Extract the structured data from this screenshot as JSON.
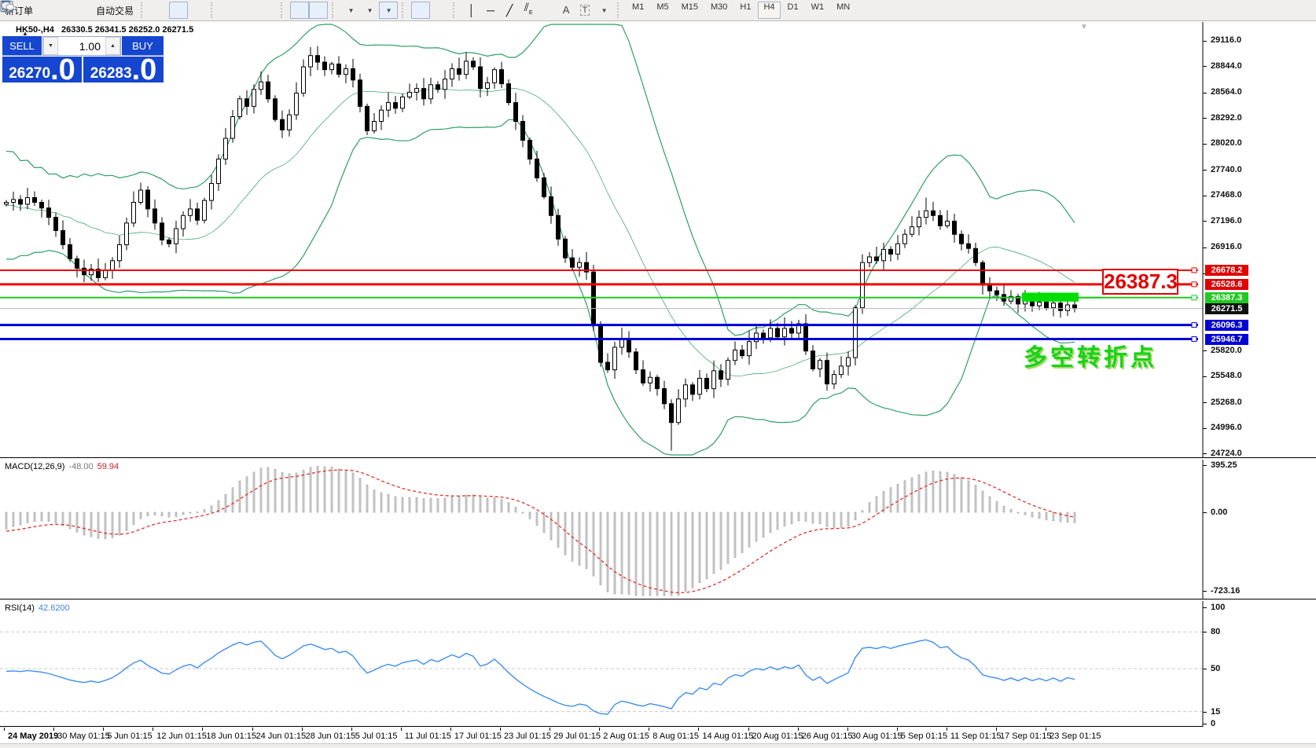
{
  "toolbar": {
    "new_order": "新订单",
    "autotrading": "自动交易",
    "timeframes": [
      "M1",
      "M5",
      "M15",
      "M30",
      "H1",
      "H4",
      "D1",
      "W1",
      "MN"
    ],
    "active_timeframe": "H4"
  },
  "chart_header": {
    "symbol": "HK50-,H4",
    "ohlc": "26330.5 26341.5 26252.0 26271.5"
  },
  "trade_panel": {
    "sell_label": "SELL",
    "buy_label": "BUY",
    "volume": "1.00",
    "sell_price": "26270",
    "sell_price_big": ".0",
    "buy_price": "26283",
    "buy_price_big": ".0"
  },
  "annotations": {
    "price_callout": "26387.3",
    "cn_note": "多空转折点"
  },
  "indicator_labels": {
    "macd_name": "MACD(12,26,9)",
    "macd_v1": "-48.00",
    "macd_v2": "59.94",
    "rsi_name": "RSI(14)",
    "rsi_value": "42.6200"
  },
  "chart_data": {
    "type": "candlestick",
    "symbol": "HK50",
    "timeframe": "H4",
    "title": "HK50-,H4 with Bollinger Bands, MACD(12,26,9), RSI(14)",
    "price_axis_ticks": [
      29116.0,
      28844.0,
      28564.0,
      28292.0,
      28020.0,
      27740.0,
      27468.0,
      27196.0,
      26916.0,
      26644.0,
      25820.0,
      25548.0,
      25268.0,
      24996.0,
      24724.0
    ],
    "hlines": [
      {
        "price": 26678.2,
        "label": "26678.2",
        "color": "#ee0000",
        "width": 2,
        "tag": "red"
      },
      {
        "price": 26528.6,
        "label": "26528.6",
        "color": "#ee0000",
        "width": 3,
        "tag": "red"
      },
      {
        "price": 26387.3,
        "label": "26387.3",
        "color": "#22c922",
        "width": 2,
        "tag": "green"
      },
      {
        "price": 26096.3,
        "label": "26096.3",
        "color": "#0000d6",
        "width": 3,
        "tag": "blue"
      },
      {
        "price": 25946.7,
        "label": "25946.7",
        "color": "#0000d6",
        "width": 3,
        "tag": "blue"
      }
    ],
    "current_price": {
      "value": 26271.5,
      "label": "26271.5"
    },
    "highlight_band": {
      "from_candle": 144,
      "to_candle": 151,
      "price_top": 26440,
      "price_bottom": 26345,
      "color": "#00dd00"
    },
    "candles": {
      "first_open": 27380,
      "closes": [
        27400,
        27430,
        27380,
        27450,
        27400,
        27340,
        27240,
        27100,
        26950,
        26800,
        26700,
        26630,
        26690,
        26600,
        26680,
        26780,
        26950,
        27180,
        27400,
        27530,
        27330,
        27180,
        27000,
        26960,
        27120,
        27260,
        27330,
        27210,
        27420,
        27600,
        27860,
        28080,
        28310,
        28500,
        28420,
        28600,
        28680,
        28500,
        28280,
        28170,
        28330,
        28560,
        28840,
        28960,
        28890,
        28810,
        28870,
        28760,
        28820,
        28700,
        28420,
        28160,
        28260,
        28380,
        28460,
        28400,
        28520,
        28570,
        28610,
        28500,
        28650,
        28600,
        28710,
        28820,
        28760,
        28900,
        28840,
        28610,
        28670,
        28810,
        28660,
        28460,
        28260,
        28060,
        27860,
        27660,
        27460,
        27260,
        27010,
        26810,
        26710,
        26760,
        26660,
        26100,
        25700,
        25620,
        25860,
        25950,
        25810,
        25620,
        25480,
        25540,
        25420,
        25260,
        25060,
        25310,
        25460,
        25360,
        25530,
        25420,
        25610,
        25520,
        25720,
        25830,
        25770,
        25920,
        26010,
        25960,
        26060,
        25970,
        26060,
        26010,
        26110,
        25820,
        25630,
        25720,
        25470,
        25570,
        25660,
        25750,
        26280,
        26760,
        26820,
        26780,
        26900,
        26850,
        26960,
        27060,
        27140,
        27240,
        27310,
        27260,
        27150,
        27200,
        27060,
        26960,
        26910,
        26760,
        26520,
        26460,
        26420,
        26350,
        26400,
        26320,
        26380,
        26300,
        26340,
        26280,
        26330,
        26250,
        26310,
        26271.5
      ],
      "low_overrides": {
        "94": 24760
      },
      "high_overrides": {
        "43": 29050,
        "65": 28990,
        "130": 27450
      }
    },
    "bollinger": {
      "period": 20,
      "deviation": 2,
      "color": "#2e9e68"
    },
    "macd": {
      "fast": 12,
      "slow": 26,
      "signal_period": 9,
      "main": -48.0,
      "signal": 59.94,
      "axis_ticks": [
        "395.25",
        "0.00",
        "-723.16"
      ],
      "range": [
        395.25,
        -723.16
      ],
      "histogram_color": "#d4d4d4",
      "signal_color": "#e03030"
    },
    "rsi": {
      "period": 14,
      "value": 42.62,
      "axis_ticks": [
        100,
        80,
        50,
        15,
        0
      ],
      "dashed_levels": [
        80,
        50,
        15
      ],
      "line_color": "#3f8ef0",
      "range": [
        0,
        100
      ]
    },
    "time_axis": [
      "24 May 2019",
      "30 May 01:15",
      "5 Jun 01:15",
      "12 Jun 01:15",
      "18 Jun 01:15",
      "24 Jun 01:15",
      "28 Jun 01:15",
      "5 Jul 01:15",
      "11 Jul 01:15",
      "17 Jul 01:15",
      "23 Jul 01:15",
      "29 Jul 01:15",
      "2 Aug 01:15",
      "8 Aug 01:15",
      "14 Aug 01:15",
      "20 Aug 01:15",
      "26 Aug 01:15",
      "30 Aug 01:15",
      "5 Sep 01:15",
      "11 Sep 01:15",
      "17 Sep 01:15",
      "23 Sep 01:15"
    ]
  }
}
